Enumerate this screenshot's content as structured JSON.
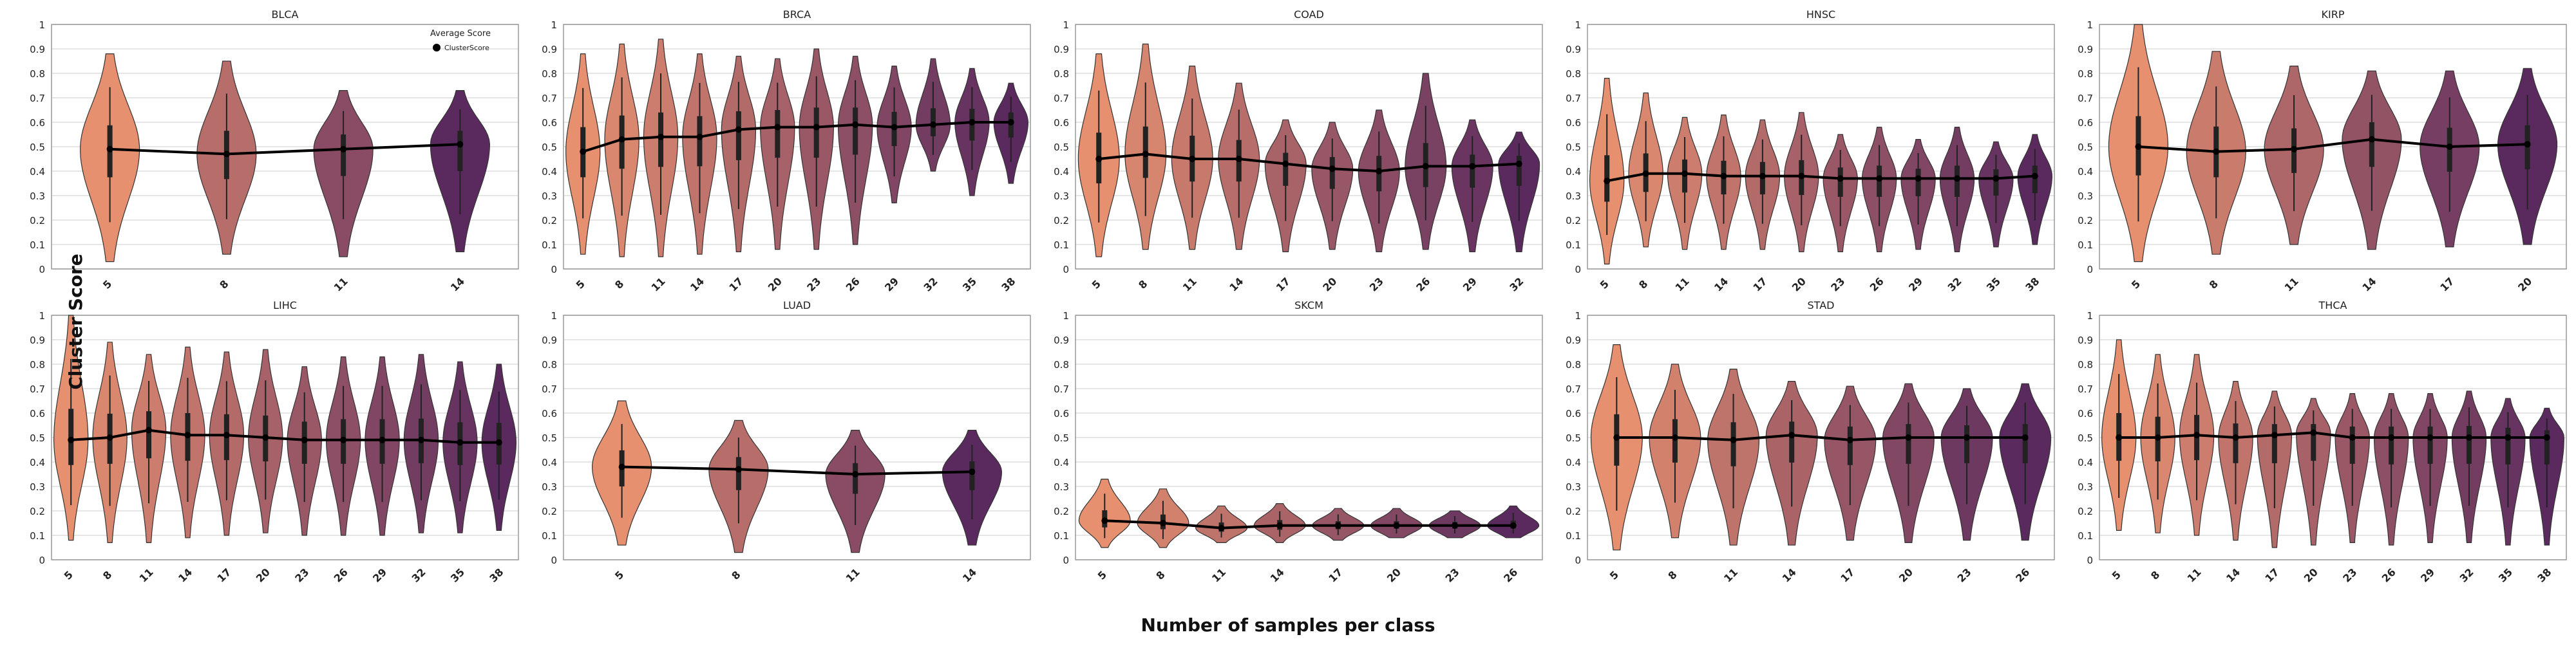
{
  "figure": {
    "ylabel": "Cluster Score",
    "xlabel": "Number of samples per class",
    "legend": {
      "title": "Average Score",
      "entry": "ClusterScore",
      "panel": "BLCA",
      "placement": "upper-right"
    },
    "colors": {
      "start": "#e69070",
      "end": "#5a2a5e",
      "mean_line": "#000000",
      "grid": "#dddddd",
      "frame": "#999999"
    },
    "yticks": [
      "0",
      "0.1",
      "0.2",
      "0.3",
      "0.4",
      "0.5",
      "0.6",
      "0.7",
      "0.8",
      "0.9",
      "1"
    ]
  },
  "chart_data": [
    {
      "type": "violin",
      "title": "BLCA",
      "ylim": [
        0,
        1
      ],
      "x": [
        5,
        8,
        11,
        14
      ],
      "series": [
        {
          "name": "ClusterScore",
          "mean": [
            0.49,
            0.47,
            0.49,
            0.51
          ]
        }
      ],
      "dist_min": [
        0.03,
        0.06,
        0.05,
        0.07
      ],
      "dist_max": [
        0.88,
        0.85,
        0.73,
        0.73
      ]
    },
    {
      "type": "violin",
      "title": "BRCA",
      "ylim": [
        0,
        1
      ],
      "x": [
        5,
        8,
        11,
        14,
        17,
        20,
        23,
        26,
        29,
        32,
        35,
        38
      ],
      "series": [
        {
          "name": "ClusterScore",
          "mean": [
            0.48,
            0.53,
            0.54,
            0.54,
            0.57,
            0.58,
            0.58,
            0.59,
            0.58,
            0.59,
            0.6,
            0.6
          ]
        }
      ],
      "dist_min": [
        0.06,
        0.05,
        0.05,
        0.06,
        0.07,
        0.08,
        0.08,
        0.1,
        0.27,
        0.4,
        0.3,
        0.35
      ],
      "dist_max": [
        0.88,
        0.92,
        0.94,
        0.88,
        0.87,
        0.86,
        0.9,
        0.87,
        0.83,
        0.86,
        0.82,
        0.76
      ]
    },
    {
      "type": "violin",
      "title": "COAD",
      "ylim": [
        0,
        1
      ],
      "x": [
        5,
        8,
        11,
        14,
        17,
        20,
        23,
        26,
        29,
        32
      ],
      "series": [
        {
          "name": "ClusterScore",
          "mean": [
            0.45,
            0.47,
            0.45,
            0.45,
            0.43,
            0.41,
            0.4,
            0.42,
            0.42,
            0.43
          ]
        }
      ],
      "dist_min": [
        0.05,
        0.08,
        0.08,
        0.08,
        0.07,
        0.08,
        0.07,
        0.08,
        0.07,
        0.07
      ],
      "dist_max": [
        0.88,
        0.92,
        0.83,
        0.76,
        0.61,
        0.6,
        0.65,
        0.8,
        0.61,
        0.56
      ]
    },
    {
      "type": "violin",
      "title": "HNSC",
      "ylim": [
        0,
        1
      ],
      "x": [
        5,
        8,
        11,
        14,
        17,
        20,
        23,
        26,
        29,
        32,
        35,
        38
      ],
      "series": [
        {
          "name": "ClusterScore",
          "mean": [
            0.36,
            0.39,
            0.39,
            0.38,
            0.38,
            0.38,
            0.37,
            0.37,
            0.37,
            0.37,
            0.37,
            0.38
          ]
        }
      ],
      "dist_min": [
        0.02,
        0.09,
        0.08,
        0.08,
        0.08,
        0.07,
        0.07,
        0.07,
        0.08,
        0.07,
        0.09,
        0.1
      ],
      "dist_max": [
        0.78,
        0.72,
        0.62,
        0.63,
        0.61,
        0.64,
        0.55,
        0.58,
        0.53,
        0.58,
        0.52,
        0.55
      ]
    },
    {
      "type": "violin",
      "title": "KIRP",
      "ylim": [
        0,
        1
      ],
      "x": [
        5,
        8,
        11,
        14,
        17,
        20
      ],
      "series": [
        {
          "name": "ClusterScore",
          "mean": [
            0.5,
            0.48,
            0.49,
            0.53,
            0.5,
            0.51
          ]
        }
      ],
      "dist_min": [
        0.03,
        0.06,
        0.1,
        0.08,
        0.09,
        0.1
      ],
      "dist_max": [
        1.0,
        0.89,
        0.83,
        0.81,
        0.81,
        0.82
      ]
    },
    {
      "type": "violin",
      "title": "LIHC",
      "ylim": [
        0,
        1
      ],
      "x": [
        5,
        8,
        11,
        14,
        17,
        20,
        23,
        26,
        29,
        32,
        35,
        38
      ],
      "series": [
        {
          "name": "ClusterScore",
          "mean": [
            0.49,
            0.5,
            0.53,
            0.51,
            0.51,
            0.5,
            0.49,
            0.49,
            0.49,
            0.49,
            0.48,
            0.48
          ]
        }
      ],
      "dist_min": [
        0.08,
        0.07,
        0.07,
        0.09,
        0.1,
        0.11,
        0.1,
        0.1,
        0.1,
        0.11,
        0.11,
        0.12
      ],
      "dist_max": [
        1.0,
        0.89,
        0.84,
        0.87,
        0.85,
        0.86,
        0.79,
        0.83,
        0.83,
        0.84,
        0.81,
        0.8
      ]
    },
    {
      "type": "violin",
      "title": "LUAD",
      "ylim": [
        0,
        1
      ],
      "x": [
        5,
        8,
        11,
        14
      ],
      "series": [
        {
          "name": "ClusterScore",
          "mean": [
            0.38,
            0.37,
            0.35,
            0.36
          ]
        }
      ],
      "dist_min": [
        0.06,
        0.03,
        0.03,
        0.06
      ],
      "dist_max": [
        0.65,
        0.57,
        0.53,
        0.53
      ]
    },
    {
      "type": "violin",
      "title": "SKCM",
      "ylim": [
        0,
        1
      ],
      "x": [
        5,
        8,
        11,
        14,
        17,
        20,
        23,
        26
      ],
      "series": [
        {
          "name": "ClusterScore",
          "mean": [
            0.16,
            0.15,
            0.13,
            0.14,
            0.14,
            0.14,
            0.14,
            0.14
          ]
        }
      ],
      "dist_min": [
        0.05,
        0.05,
        0.07,
        0.07,
        0.08,
        0.09,
        0.09,
        0.09
      ],
      "dist_max": [
        0.33,
        0.29,
        0.22,
        0.23,
        0.21,
        0.21,
        0.2,
        0.22
      ]
    },
    {
      "type": "violin",
      "title": "STAD",
      "ylim": [
        0,
        1
      ],
      "x": [
        5,
        8,
        11,
        14,
        17,
        20,
        23,
        26
      ],
      "series": [
        {
          "name": "ClusterScore",
          "mean": [
            0.5,
            0.5,
            0.49,
            0.51,
            0.49,
            0.5,
            0.5,
            0.5
          ]
        }
      ],
      "dist_min": [
        0.04,
        0.09,
        0.06,
        0.06,
        0.08,
        0.07,
        0.08,
        0.08
      ],
      "dist_max": [
        0.88,
        0.8,
        0.78,
        0.73,
        0.71,
        0.72,
        0.7,
        0.72
      ]
    },
    {
      "type": "violin",
      "title": "THCA",
      "ylim": [
        0,
        1
      ],
      "x": [
        5,
        8,
        11,
        14,
        17,
        20,
        23,
        26,
        29,
        32,
        35,
        38
      ],
      "series": [
        {
          "name": "ClusterScore",
          "mean": [
            0.5,
            0.5,
            0.51,
            0.5,
            0.51,
            0.52,
            0.5,
            0.5,
            0.5,
            0.5,
            0.5,
            0.5
          ]
        }
      ],
      "dist_min": [
        0.12,
        0.11,
        0.1,
        0.08,
        0.05,
        0.06,
        0.07,
        0.06,
        0.07,
        0.07,
        0.06,
        0.06
      ],
      "dist_max": [
        0.9,
        0.84,
        0.84,
        0.73,
        0.69,
        0.66,
        0.68,
        0.68,
        0.68,
        0.69,
        0.66,
        0.62
      ]
    }
  ]
}
